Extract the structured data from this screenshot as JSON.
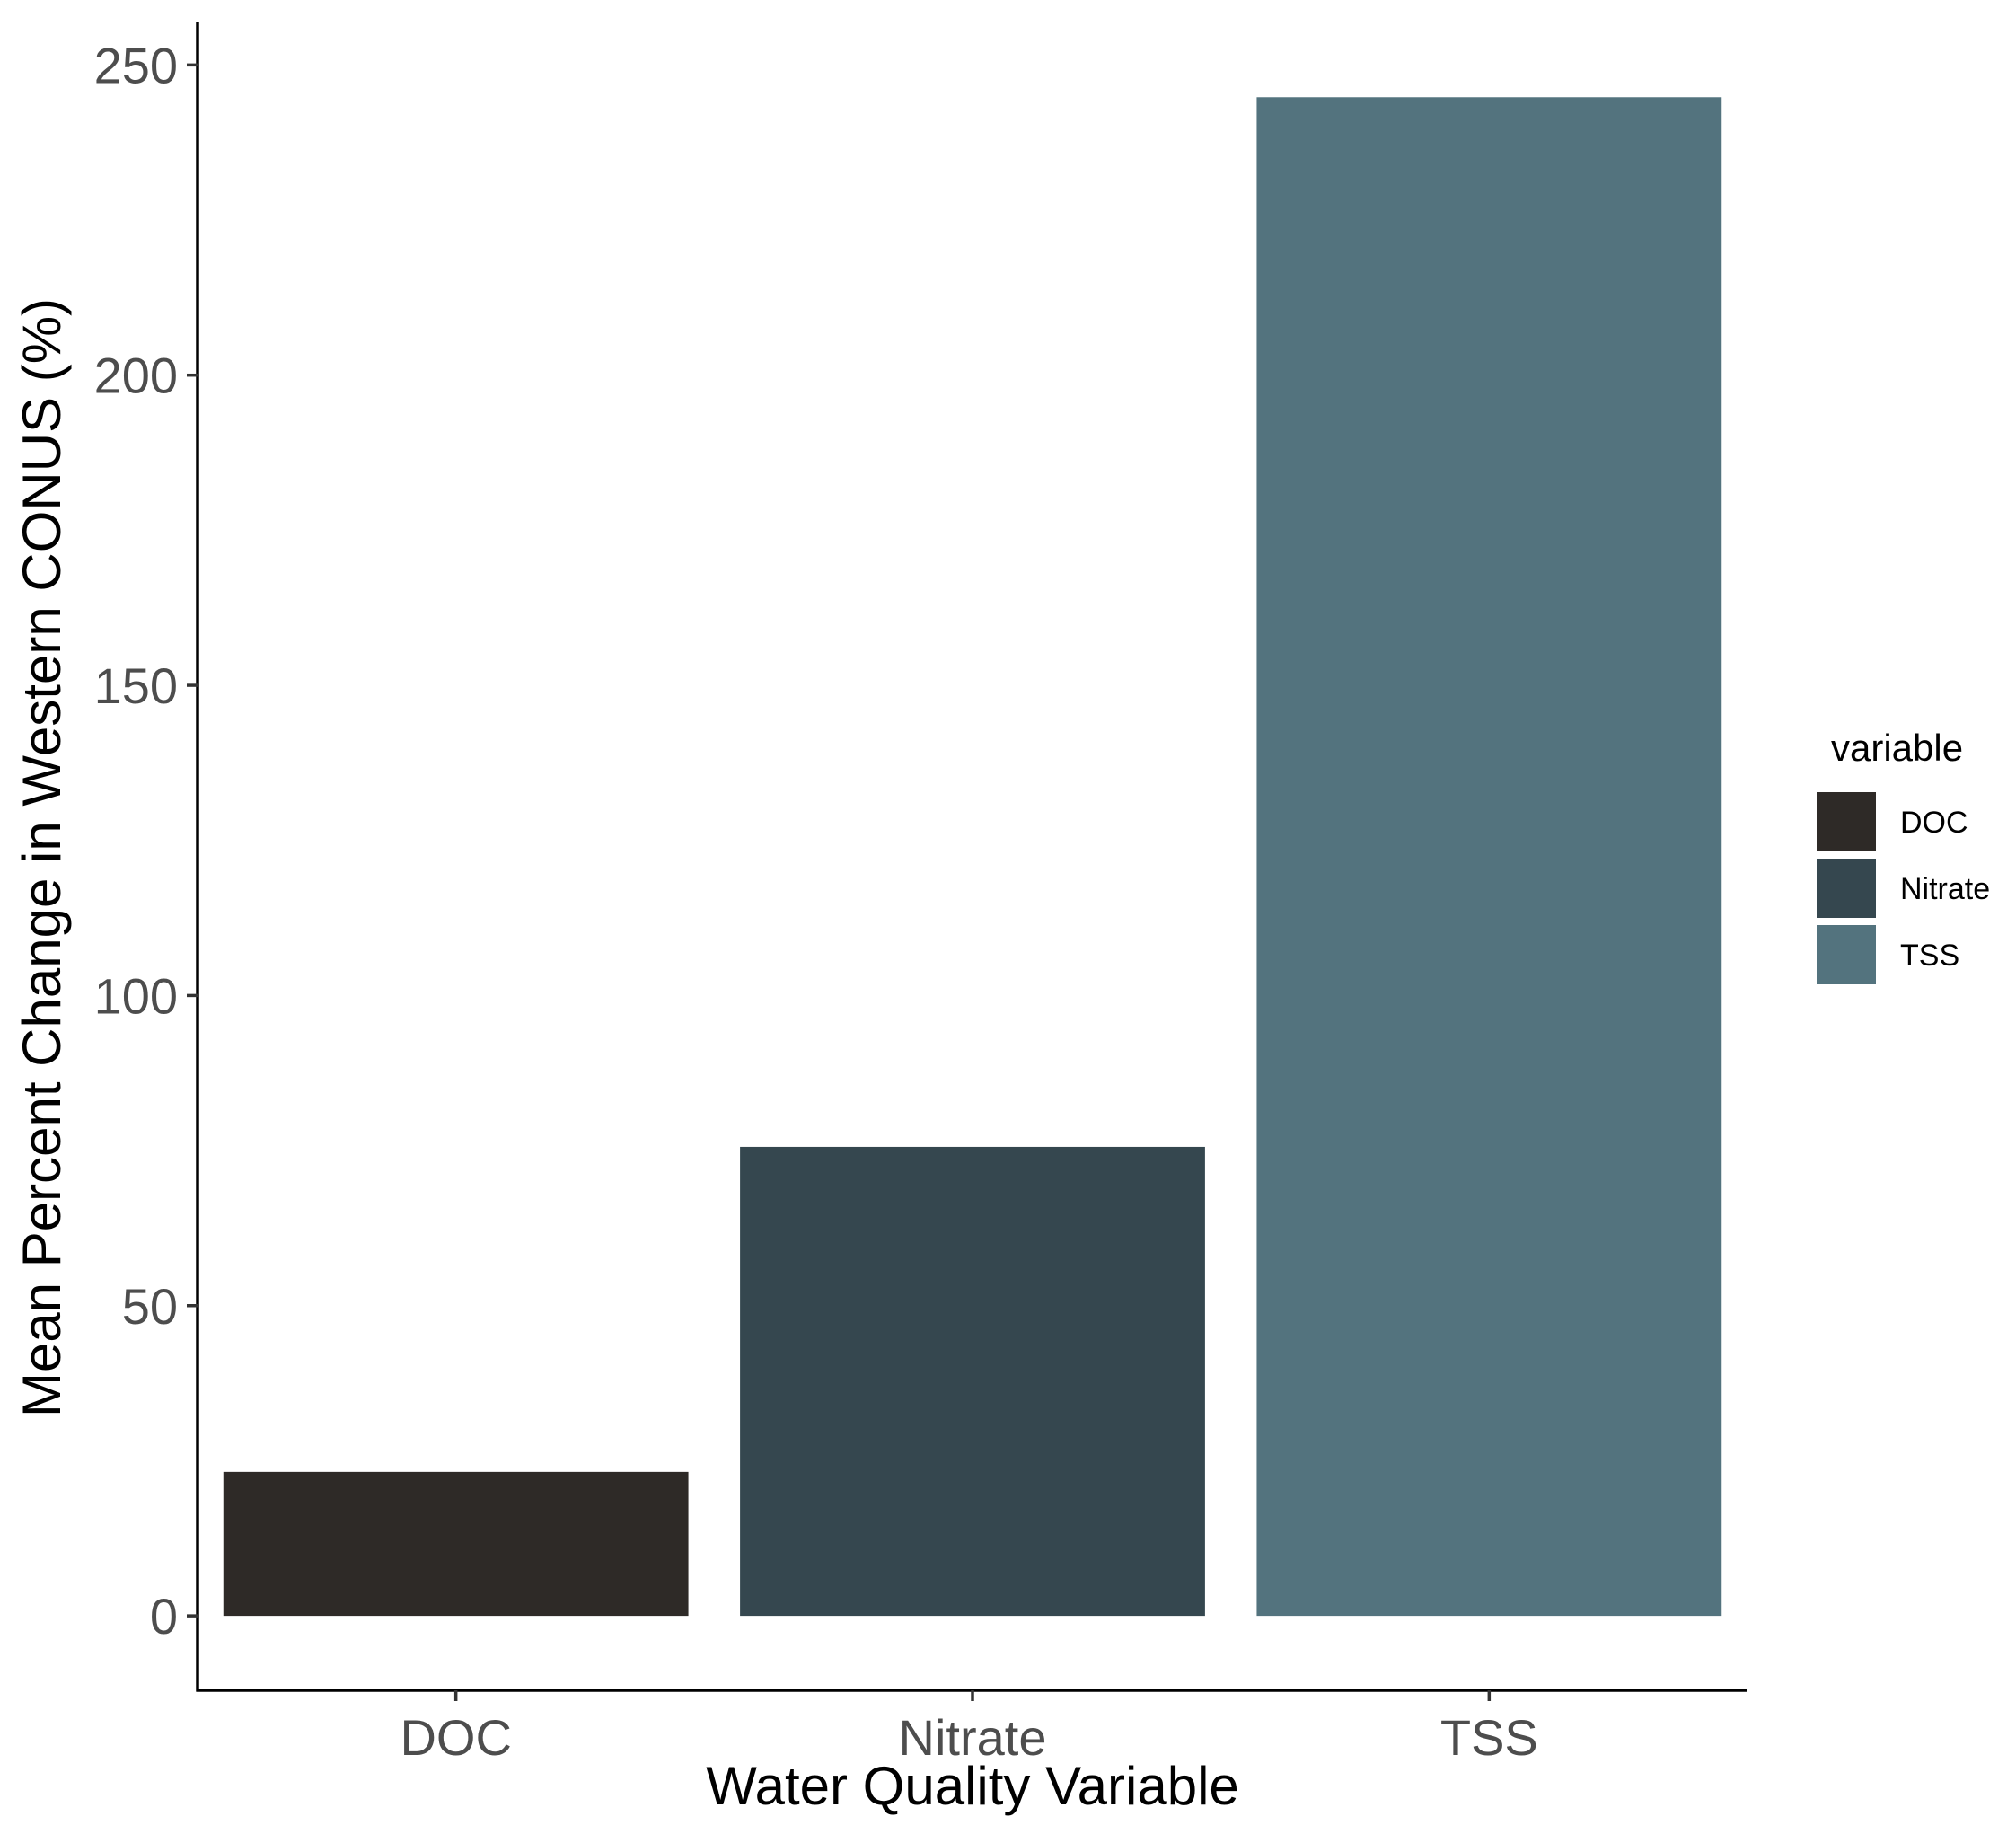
{
  "chart_data": {
    "type": "bar",
    "categories": [
      "DOC",
      "Nitrate",
      "TSS"
    ],
    "values": [
      23.2,
      75.6,
      244.8
    ],
    "colors": [
      "#2e2a27",
      "#35474f",
      "#53737e"
    ],
    "xlabel": "Water Quality Variable",
    "ylabel": "Mean Percent Change in Western CONUS (%)",
    "ylim": [
      -12,
      257
    ],
    "yticks": [
      0,
      50,
      100,
      150,
      200,
      250
    ],
    "grid": false,
    "legend": {
      "title": "variable",
      "position": "right",
      "items": [
        "DOC",
        "Nitrate",
        "TSS"
      ]
    }
  }
}
